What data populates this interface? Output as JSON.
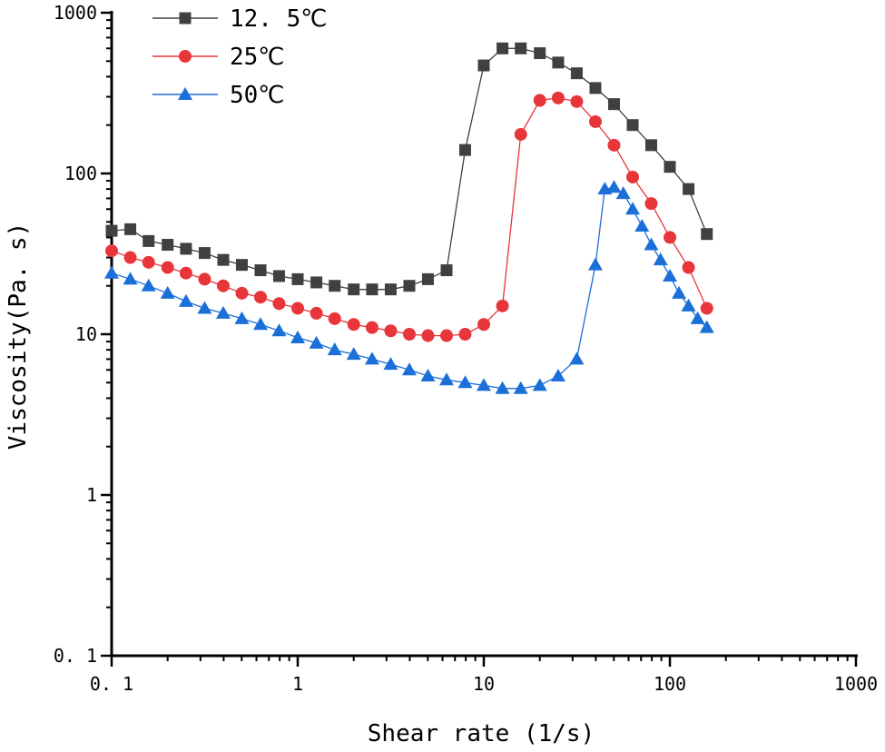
{
  "chart_data": {
    "type": "line",
    "xscale": "log",
    "yscale": "log",
    "xlabel": "Shear rate (1/s)",
    "ylabel": "Viscosity(Pa. s)",
    "xlim": [
      0.1,
      1000
    ],
    "ylim": [
      0.1,
      1000
    ],
    "x_tick_labels": [
      "0. 1",
      "1",
      "10",
      "100",
      "1000"
    ],
    "x_tick_values": [
      0.1,
      1,
      10,
      100,
      1000
    ],
    "y_tick_labels": [
      "0. 1",
      "1",
      "10",
      "100",
      "1000"
    ],
    "y_tick_values": [
      0.1,
      1,
      10,
      100,
      1000
    ],
    "legend_position": "top-left",
    "series": [
      {
        "name": "12. 5℃",
        "color": "#404040",
        "marker": "square",
        "x": [
          0.1,
          0.126,
          0.158,
          0.2,
          0.251,
          0.316,
          0.398,
          0.501,
          0.631,
          0.794,
          1.0,
          1.26,
          1.58,
          2.0,
          2.51,
          3.16,
          3.98,
          5.01,
          6.31,
          7.94,
          10.0,
          12.6,
          15.8,
          20.0,
          25.1,
          31.6,
          39.8,
          50.1,
          63.1,
          79.4,
          100,
          126,
          158
        ],
        "y": [
          44,
          45,
          38,
          36,
          34,
          32,
          29,
          27,
          25,
          23,
          22,
          21,
          20,
          19,
          19,
          19,
          20,
          22,
          25,
          140,
          470,
          600,
          600,
          560,
          490,
          420,
          340,
          270,
          200,
          150,
          110,
          80,
          42
        ]
      },
      {
        "name": "25℃",
        "color": "#e8353a",
        "marker": "circle",
        "x": [
          0.1,
          0.126,
          0.158,
          0.2,
          0.251,
          0.316,
          0.398,
          0.501,
          0.631,
          0.794,
          1.0,
          1.26,
          1.58,
          2.0,
          2.51,
          3.16,
          3.98,
          5.01,
          6.31,
          7.94,
          10.0,
          12.6,
          15.8,
          20.0,
          25.1,
          31.6,
          39.8,
          50.1,
          63.1,
          79.4,
          100,
          126,
          158
        ],
        "y": [
          33,
          30,
          28,
          26,
          24,
          22,
          20,
          18,
          17,
          15.5,
          14.5,
          13.5,
          12.5,
          11.5,
          11,
          10.5,
          10,
          9.8,
          9.8,
          10,
          11.5,
          15,
          175,
          285,
          295,
          280,
          210,
          150,
          95,
          65,
          40,
          26,
          14.5
        ]
      },
      {
        "name": "50℃",
        "color": "#1a6fd8",
        "marker": "triangle",
        "x": [
          0.1,
          0.126,
          0.158,
          0.2,
          0.251,
          0.316,
          0.398,
          0.501,
          0.631,
          0.794,
          1.0,
          1.26,
          1.58,
          2.0,
          2.51,
          3.16,
          3.98,
          5.01,
          6.31,
          7.94,
          10.0,
          12.6,
          15.8,
          20.0,
          25.1,
          31.6,
          39.8,
          44.7,
          50.1,
          56.2,
          63.1,
          70.8,
          79.4,
          89.1,
          100,
          112,
          126,
          141,
          158
        ],
        "y": [
          24,
          22,
          20,
          18,
          16,
          14.5,
          13.5,
          12.5,
          11.5,
          10.5,
          9.5,
          8.8,
          8,
          7.5,
          7,
          6.5,
          6,
          5.5,
          5.2,
          5,
          4.8,
          4.6,
          4.6,
          4.8,
          5.5,
          7,
          27,
          80,
          82,
          75,
          60,
          47,
          36,
          29,
          23,
          18,
          15,
          12.5,
          11
        ]
      }
    ]
  }
}
